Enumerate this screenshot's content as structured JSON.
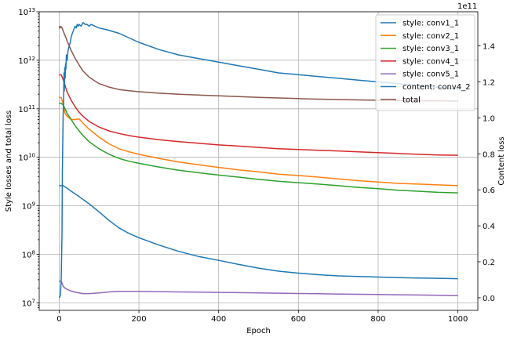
{
  "chart_data": {
    "type": "line",
    "xlabel": "Epoch",
    "ylabel_left": "Style losses and total loss",
    "ylabel_right": "Content loss",
    "right_axis_multiplier": "1e11",
    "xlim": [
      -50,
      1050
    ],
    "ylim_left_log": [
      7000000,
      10000000000000
    ],
    "ylim_right": [
      -0.07,
      1.59
    ],
    "x_ticks": [
      0,
      200,
      400,
      600,
      800,
      1000
    ],
    "x_tick_labels": [
      "0",
      "200",
      "400",
      "600",
      "800",
      "1000"
    ],
    "y_left_ticks": [
      10000000,
      100000000,
      1000000000,
      10000000000,
      100000000000,
      1000000000000,
      10000000000000
    ],
    "y_left_tick_labels": [
      "10^7",
      "10^8",
      "10^9",
      "10^10",
      "10^11",
      "10^12",
      "10^13"
    ],
    "y_right_ticks": [
      0.0,
      0.2,
      0.4,
      0.6,
      0.8,
      1.0,
      1.2,
      1.4
    ],
    "y_right_tick_labels": [
      "0.0",
      "0.2",
      "0.4",
      "0.6",
      "0.8",
      "1.0",
      "1.2",
      "1.4"
    ],
    "grid": true,
    "legend_position": "top-right",
    "series": [
      {
        "name": "style: conv1_1",
        "axis": "left",
        "color": "#1f77b4",
        "x": [
          0,
          10,
          20,
          30,
          50,
          75,
          100,
          125,
          150,
          175,
          200,
          250,
          300,
          350,
          400,
          450,
          500,
          550,
          600,
          650,
          700,
          750,
          800,
          850,
          900,
          950,
          1000
        ],
        "y": [
          2600000000,
          2600000000,
          2300000000,
          2000000000,
          1550000000,
          1100000000,
          750000000,
          500000000,
          350000000,
          270000000,
          220000000,
          155000000,
          115000000,
          90000000,
          75000000,
          62000000,
          52000000,
          45000000,
          41000000,
          38000000,
          36000000,
          35000000,
          34000000,
          33000000,
          32500000,
          32000000,
          31500000
        ]
      },
      {
        "name": "style: conv2_1",
        "axis": "left",
        "color": "#ff7f0e",
        "x": [
          0,
          5,
          10,
          15,
          20,
          30,
          40,
          50,
          60,
          75,
          100,
          125,
          150,
          175,
          200,
          250,
          300,
          350,
          400,
          450,
          500,
          550,
          600,
          650,
          700,
          750,
          800,
          850,
          900,
          950,
          1000
        ],
        "y": [
          170000000000,
          170000000000,
          130000000000,
          80000000000,
          70000000000,
          60000000000,
          60000000000,
          62000000000,
          50000000000,
          38000000000,
          26000000000,
          19000000000,
          15000000000,
          13000000000,
          11500000000,
          9500000000,
          8000000000,
          7000000000,
          6200000000,
          5500000000,
          5000000000,
          4500000000,
          4200000000,
          3900000000,
          3600000000,
          3300000000,
          3100000000,
          2900000000,
          2800000000,
          2700000000,
          2600000000
        ]
      },
      {
        "name": "style: conv3_1",
        "axis": "left",
        "color": "#2ca02c",
        "x": [
          0,
          5,
          10,
          15,
          20,
          30,
          40,
          50,
          60,
          75,
          100,
          125,
          150,
          175,
          200,
          250,
          300,
          350,
          400,
          450,
          500,
          550,
          600,
          650,
          700,
          750,
          800,
          850,
          900,
          950,
          1000
        ],
        "y": [
          130000000000,
          130000000000,
          120000000000,
          100000000000,
          80000000000,
          60000000000,
          45000000000,
          35000000000,
          28000000000,
          21000000000,
          15000000000,
          11500000000,
          9500000000,
          8300000000,
          7500000000,
          6300000000,
          5400000000,
          4800000000,
          4300000000,
          3900000000,
          3500000000,
          3200000000,
          3000000000,
          2800000000,
          2600000000,
          2400000000,
          2250000000,
          2100000000,
          2000000000,
          1900000000,
          1850000000
        ]
      },
      {
        "name": "style: conv4_1",
        "axis": "left",
        "color": "#d62728",
        "x": [
          0,
          5,
          10,
          15,
          20,
          30,
          40,
          50,
          60,
          75,
          100,
          125,
          150,
          175,
          200,
          250,
          300,
          350,
          400,
          450,
          500,
          550,
          600,
          650,
          700,
          750,
          800,
          850,
          900,
          950,
          1000
        ],
        "y": [
          500000000000,
          500000000000,
          400000000000,
          300000000000,
          220000000000,
          150000000000,
          110000000000,
          85000000000,
          70000000000,
          55000000000,
          42000000000,
          35000000000,
          31000000000,
          28000000000,
          26000000000,
          23000000000,
          21000000000,
          19500000000,
          18000000000,
          17000000000,
          16000000000,
          15000000000,
          14500000000,
          14000000000,
          13500000000,
          13000000000,
          12500000000,
          12000000000,
          11500000000,
          11200000000,
          11000000000
        ]
      },
      {
        "name": "style: conv5_1",
        "axis": "left",
        "color": "#9467bd",
        "x": [
          0,
          5,
          10,
          15,
          20,
          30,
          40,
          50,
          60,
          75,
          100,
          125,
          150,
          175,
          200,
          250,
          300,
          350,
          400,
          450,
          500,
          550,
          600,
          650,
          700,
          750,
          800,
          850,
          900,
          950,
          1000
        ],
        "y": [
          28000000,
          28000000,
          22000000,
          20000000,
          19000000,
          17500000,
          16500000,
          16000000,
          15500000,
          15500000,
          16000000,
          16800000,
          17200000,
          17300000,
          17200000,
          17000000,
          16800000,
          16600000,
          16400000,
          16200000,
          16000000,
          15800000,
          15600000,
          15400000,
          15200000,
          15000000,
          14900000,
          14700000,
          14500000,
          14300000,
          14100000
        ]
      },
      {
        "name": "content: conv4_2",
        "axis": "right",
        "color": "#1f77b4",
        "x": [
          0,
          3,
          5,
          7,
          8,
          10,
          11,
          12,
          13,
          14,
          15,
          16,
          17,
          18,
          20,
          22,
          25,
          28,
          30,
          33,
          35,
          38,
          40,
          43,
          45,
          48,
          50,
          55,
          60,
          65,
          70,
          75,
          80,
          90,
          100,
          120,
          150,
          200,
          250,
          300,
          350,
          400,
          450,
          500,
          550,
          600,
          650,
          700,
          750,
          800,
          850,
          900,
          950,
          1000
        ],
        "y": [
          0.0,
          0.01,
          0.1,
          0.35,
          0.7,
          1.02,
          1.08,
          1.25,
          1.15,
          1.28,
          1.22,
          1.3,
          1.27,
          1.35,
          1.32,
          1.37,
          1.4,
          1.42,
          1.45,
          1.47,
          1.48,
          1.5,
          1.51,
          1.5,
          1.52,
          1.51,
          1.52,
          1.51,
          1.53,
          1.52,
          1.52,
          1.51,
          1.52,
          1.51,
          1.5,
          1.49,
          1.47,
          1.42,
          1.38,
          1.35,
          1.33,
          1.31,
          1.29,
          1.27,
          1.25,
          1.24,
          1.23,
          1.22,
          1.21,
          1.2,
          1.19,
          1.18,
          1.17,
          1.16
        ]
      },
      {
        "name": "total",
        "axis": "left",
        "color": "#8c564b",
        "x": [
          0,
          2,
          4,
          6,
          8,
          10,
          15,
          20,
          30,
          40,
          50,
          60,
          75,
          100,
          125,
          150,
          175,
          200,
          250,
          300,
          350,
          400,
          450,
          500,
          550,
          600,
          650,
          700,
          750,
          800,
          850,
          900,
          950,
          1000
        ],
        "y": [
          5000000000000,
          4600000000000,
          5000000000000,
          4800000000000,
          4500000000000,
          4000000000000,
          3200000000000,
          2500000000000,
          1600000000000,
          1100000000000,
          800000000000,
          600000000000,
          450000000000,
          330000000000,
          280000000000,
          250000000000,
          235000000000,
          225000000000,
          210000000000,
          200000000000,
          192000000000,
          185000000000,
          178000000000,
          172000000000,
          167000000000,
          162000000000,
          158000000000,
          155000000000,
          152000000000,
          150000000000,
          148000000000,
          146000000000,
          145000000000,
          144000000000
        ]
      }
    ]
  }
}
